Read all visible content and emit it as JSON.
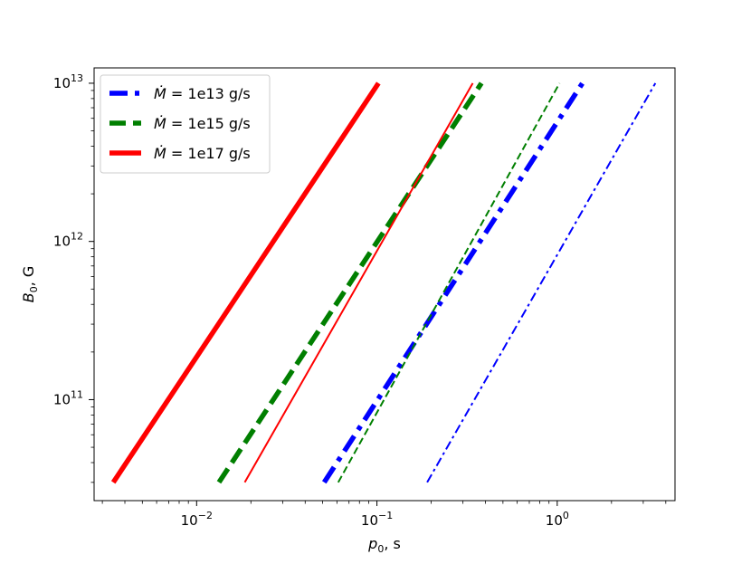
{
  "chart_data": {
    "type": "line",
    "title": "",
    "xlabel_main": "p",
    "xlabel_sub": "0",
    "xlabel_unit": ", s",
    "ylabel_main": "B",
    "ylabel_sub": "0",
    "ylabel_unit": ", G",
    "xscale": "log",
    "yscale": "log",
    "xlim": [
      0.0027,
      4.5
    ],
    "ylim": [
      23000000000.0,
      12500000000000.0
    ],
    "grid": false,
    "legend_position": "top-left",
    "x_ticks": [
      {
        "value": 0.01,
        "base": "10",
        "exp": "−2"
      },
      {
        "value": 0.1,
        "base": "10",
        "exp": "−1"
      },
      {
        "value": 1,
        "base": "10",
        "exp": "0"
      }
    ],
    "y_ticks": [
      {
        "value": 100000000000.0,
        "base": "10",
        "exp": "11"
      },
      {
        "value": 1000000000000.0,
        "base": "10",
        "exp": "12"
      },
      {
        "value": 10000000000000.0,
        "base": "10",
        "exp": "13"
      }
    ],
    "series": [
      {
        "name": "1e13 g/s",
        "label_prefix": "Ṁ",
        "label_eq": " = ",
        "color": "#0000ff",
        "style": "dashdot",
        "weight": "thick",
        "x": [
          0.051,
          1.38
        ],
        "y": [
          30000000000.0,
          10000000000000.0
        ]
      },
      {
        "name": "",
        "color": "#0000ff",
        "style": "dashdot",
        "weight": "thin",
        "x": [
          0.19,
          3.5
        ],
        "y": [
          30000000000.0,
          10000000000000.0
        ]
      },
      {
        "name": "1e15 g/s",
        "label_prefix": "Ṁ",
        "label_eq": " = ",
        "color": "#007f00",
        "style": "dashed",
        "weight": "thick",
        "x": [
          0.0133,
          0.38
        ],
        "y": [
          30000000000.0,
          10000000000000.0
        ]
      },
      {
        "name": "",
        "color": "#007f00",
        "style": "dashed",
        "weight": "thin",
        "x": [
          0.061,
          1.03
        ],
        "y": [
          30000000000.0,
          10000000000000.0
        ]
      },
      {
        "name": "1e17 g/s",
        "label_prefix": "Ṁ",
        "label_eq": " = ",
        "color": "#ff0000",
        "style": "solid",
        "weight": "thick",
        "x": [
          0.00345,
          0.102
        ],
        "y": [
          30000000000.0,
          10000000000000.0
        ]
      },
      {
        "name": "",
        "color": "#ff0000",
        "style": "solid",
        "weight": "thin",
        "x": [
          0.0185,
          0.34
        ],
        "y": [
          30000000000.0,
          10000000000000.0
        ]
      }
    ]
  }
}
